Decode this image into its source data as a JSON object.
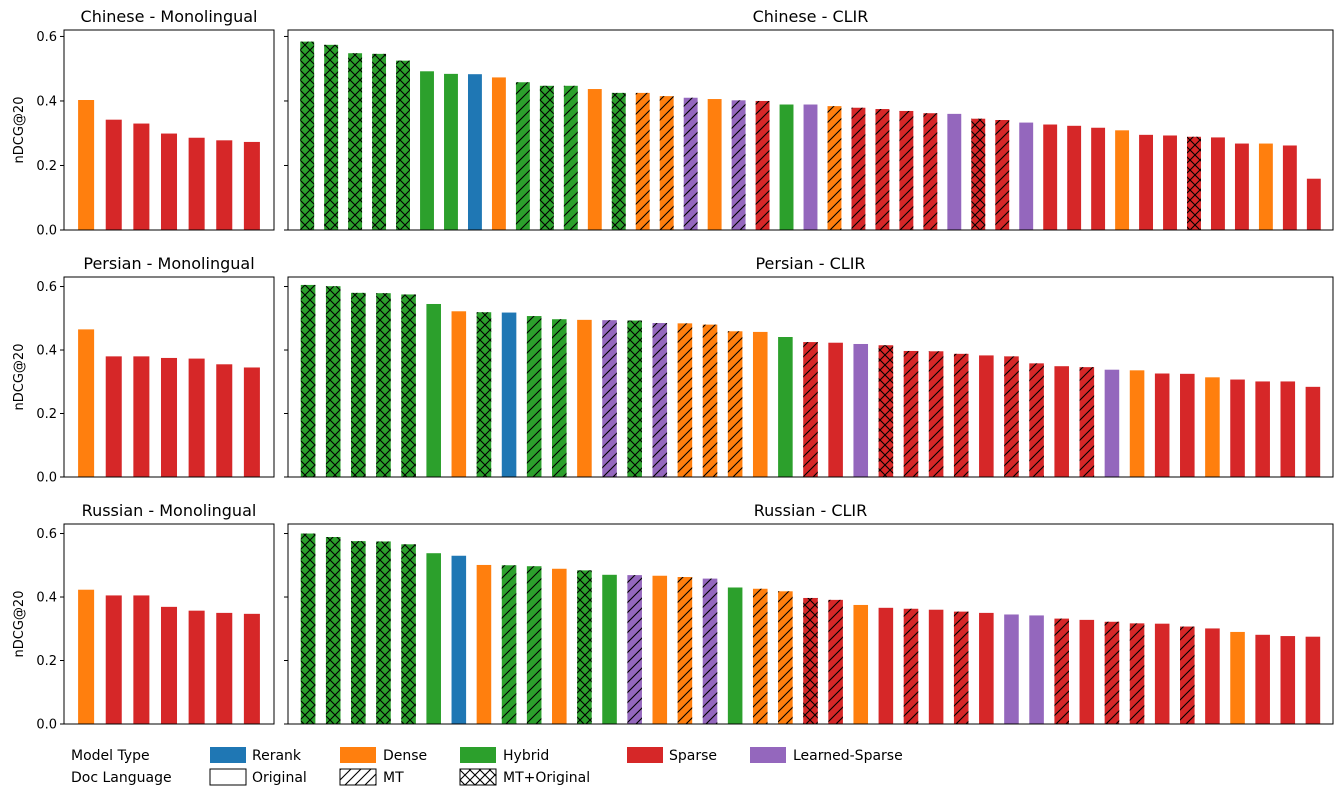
{
  "colors": {
    "Rerank": "#1f77b4",
    "Dense": "#ff7f0e",
    "Hybrid": "#2ca02c",
    "Sparse": "#d62728",
    "Learned-Sparse": "#9467bd"
  },
  "legend": {
    "model_type_label": "Model Type",
    "doc_language_label": "Doc Language",
    "model_types": [
      "Rerank",
      "Dense",
      "Hybrid",
      "Sparse",
      "Learned-Sparse"
    ],
    "doc_languages": [
      {
        "name": "Original",
        "pattern": "none"
      },
      {
        "name": "MT",
        "pattern": "hatch"
      },
      {
        "name": "MT+Original",
        "pattern": "cross"
      }
    ]
  },
  "chart_data": [
    {
      "type": "bar",
      "title": "Chinese - Monolingual",
      "ylabel": "nDCG@20",
      "ylim": [
        0,
        0.62
      ],
      "yticks": [
        "0.0",
        "0.2",
        "0.4",
        "0.6"
      ],
      "bars": [
        {
          "value": 0.403,
          "model": "Dense",
          "doc": "Original"
        },
        {
          "value": 0.342,
          "model": "Sparse",
          "doc": "Original"
        },
        {
          "value": 0.33,
          "model": "Sparse",
          "doc": "Original"
        },
        {
          "value": 0.299,
          "model": "Sparse",
          "doc": "Original"
        },
        {
          "value": 0.286,
          "model": "Sparse",
          "doc": "Original"
        },
        {
          "value": 0.278,
          "model": "Sparse",
          "doc": "Original"
        },
        {
          "value": 0.273,
          "model": "Sparse",
          "doc": "Original"
        }
      ]
    },
    {
      "type": "bar",
      "title": "Chinese - CLIR",
      "ylabel": "",
      "ylim": [
        0,
        0.62
      ],
      "yticks": [],
      "bars": [
        {
          "value": 0.584,
          "model": "Hybrid",
          "doc": "MT+Original"
        },
        {
          "value": 0.574,
          "model": "Hybrid",
          "doc": "MT+Original"
        },
        {
          "value": 0.548,
          "model": "Hybrid",
          "doc": "MT+Original"
        },
        {
          "value": 0.546,
          "model": "Hybrid",
          "doc": "MT+Original"
        },
        {
          "value": 0.525,
          "model": "Hybrid",
          "doc": "MT+Original"
        },
        {
          "value": 0.492,
          "model": "Hybrid",
          "doc": "Original"
        },
        {
          "value": 0.484,
          "model": "Hybrid",
          "doc": "Original"
        },
        {
          "value": 0.483,
          "model": "Rerank",
          "doc": "Original"
        },
        {
          "value": 0.473,
          "model": "Dense",
          "doc": "Original"
        },
        {
          "value": 0.458,
          "model": "Hybrid",
          "doc": "MT"
        },
        {
          "value": 0.447,
          "model": "Hybrid",
          "doc": "MT+Original"
        },
        {
          "value": 0.447,
          "model": "Hybrid",
          "doc": "MT"
        },
        {
          "value": 0.437,
          "model": "Dense",
          "doc": "Original"
        },
        {
          "value": 0.425,
          "model": "Hybrid",
          "doc": "MT+Original"
        },
        {
          "value": 0.425,
          "model": "Dense",
          "doc": "MT"
        },
        {
          "value": 0.415,
          "model": "Dense",
          "doc": "MT"
        },
        {
          "value": 0.41,
          "model": "Learned-Sparse",
          "doc": "MT"
        },
        {
          "value": 0.406,
          "model": "Dense",
          "doc": "Original"
        },
        {
          "value": 0.402,
          "model": "Learned-Sparse",
          "doc": "MT"
        },
        {
          "value": 0.4,
          "model": "Sparse",
          "doc": "MT"
        },
        {
          "value": 0.389,
          "model": "Hybrid",
          "doc": "Original"
        },
        {
          "value": 0.389,
          "model": "Learned-Sparse",
          "doc": "Original"
        },
        {
          "value": 0.384,
          "model": "Dense",
          "doc": "MT"
        },
        {
          "value": 0.379,
          "model": "Sparse",
          "doc": "MT"
        },
        {
          "value": 0.375,
          "model": "Sparse",
          "doc": "MT"
        },
        {
          "value": 0.369,
          "model": "Sparse",
          "doc": "MT"
        },
        {
          "value": 0.362,
          "model": "Sparse",
          "doc": "MT"
        },
        {
          "value": 0.36,
          "model": "Learned-Sparse",
          "doc": "Original"
        },
        {
          "value": 0.345,
          "model": "Sparse",
          "doc": "MT+Original"
        },
        {
          "value": 0.341,
          "model": "Sparse",
          "doc": "MT"
        },
        {
          "value": 0.333,
          "model": "Learned-Sparse",
          "doc": "Original"
        },
        {
          "value": 0.327,
          "model": "Sparse",
          "doc": "Original"
        },
        {
          "value": 0.323,
          "model": "Sparse",
          "doc": "Original"
        },
        {
          "value": 0.317,
          "model": "Sparse",
          "doc": "Original"
        },
        {
          "value": 0.309,
          "model": "Dense",
          "doc": "Original"
        },
        {
          "value": 0.295,
          "model": "Sparse",
          "doc": "Original"
        },
        {
          "value": 0.293,
          "model": "Sparse",
          "doc": "Original"
        },
        {
          "value": 0.289,
          "model": "Sparse",
          "doc": "MT+Original"
        },
        {
          "value": 0.287,
          "model": "Sparse",
          "doc": "Original"
        },
        {
          "value": 0.268,
          "model": "Sparse",
          "doc": "Original"
        },
        {
          "value": 0.268,
          "model": "Dense",
          "doc": "Original"
        },
        {
          "value": 0.262,
          "model": "Sparse",
          "doc": "Original"
        },
        {
          "value": 0.159,
          "model": "Sparse",
          "doc": "Original"
        }
      ]
    },
    {
      "type": "bar",
      "title": "Persian - Monolingual",
      "ylabel": "nDCG@20",
      "ylim": [
        0,
        0.63
      ],
      "yticks": [
        "0.0",
        "0.2",
        "0.4",
        "0.6"
      ],
      "bars": [
        {
          "value": 0.465,
          "model": "Dense",
          "doc": "Original"
        },
        {
          "value": 0.38,
          "model": "Sparse",
          "doc": "Original"
        },
        {
          "value": 0.38,
          "model": "Sparse",
          "doc": "Original"
        },
        {
          "value": 0.375,
          "model": "Sparse",
          "doc": "Original"
        },
        {
          "value": 0.373,
          "model": "Sparse",
          "doc": "Original"
        },
        {
          "value": 0.355,
          "model": "Sparse",
          "doc": "Original"
        },
        {
          "value": 0.345,
          "model": "Sparse",
          "doc": "Original"
        }
      ]
    },
    {
      "type": "bar",
      "title": "Persian - CLIR",
      "ylabel": "",
      "ylim": [
        0,
        0.63
      ],
      "yticks": [],
      "bars": [
        {
          "value": 0.605,
          "model": "Hybrid",
          "doc": "MT+Original"
        },
        {
          "value": 0.601,
          "model": "Hybrid",
          "doc": "MT+Original"
        },
        {
          "value": 0.58,
          "model": "Hybrid",
          "doc": "MT+Original"
        },
        {
          "value": 0.579,
          "model": "Hybrid",
          "doc": "MT+Original"
        },
        {
          "value": 0.575,
          "model": "Hybrid",
          "doc": "MT+Original"
        },
        {
          "value": 0.545,
          "model": "Hybrid",
          "doc": "Original"
        },
        {
          "value": 0.522,
          "model": "Dense",
          "doc": "Original"
        },
        {
          "value": 0.519,
          "model": "Hybrid",
          "doc": "MT+Original"
        },
        {
          "value": 0.518,
          "model": "Rerank",
          "doc": "Original"
        },
        {
          "value": 0.507,
          "model": "Hybrid",
          "doc": "MT"
        },
        {
          "value": 0.497,
          "model": "Hybrid",
          "doc": "MT"
        },
        {
          "value": 0.495,
          "model": "Dense",
          "doc": "Original"
        },
        {
          "value": 0.494,
          "model": "Learned-Sparse",
          "doc": "MT"
        },
        {
          "value": 0.493,
          "model": "Hybrid",
          "doc": "MT+Original"
        },
        {
          "value": 0.485,
          "model": "Learned-Sparse",
          "doc": "MT"
        },
        {
          "value": 0.484,
          "model": "Dense",
          "doc": "MT"
        },
        {
          "value": 0.48,
          "model": "Dense",
          "doc": "MT"
        },
        {
          "value": 0.459,
          "model": "Dense",
          "doc": "MT"
        },
        {
          "value": 0.457,
          "model": "Dense",
          "doc": "Original"
        },
        {
          "value": 0.441,
          "model": "Hybrid",
          "doc": "Original"
        },
        {
          "value": 0.425,
          "model": "Sparse",
          "doc": "MT"
        },
        {
          "value": 0.423,
          "model": "Sparse",
          "doc": "Original"
        },
        {
          "value": 0.419,
          "model": "Learned-Sparse",
          "doc": "Original"
        },
        {
          "value": 0.415,
          "model": "Sparse",
          "doc": "MT+Original"
        },
        {
          "value": 0.397,
          "model": "Sparse",
          "doc": "MT"
        },
        {
          "value": 0.396,
          "model": "Sparse",
          "doc": "MT"
        },
        {
          "value": 0.388,
          "model": "Sparse",
          "doc": "MT"
        },
        {
          "value": 0.383,
          "model": "Sparse",
          "doc": "Original"
        },
        {
          "value": 0.38,
          "model": "Sparse",
          "doc": "MT"
        },
        {
          "value": 0.358,
          "model": "Sparse",
          "doc": "MT"
        },
        {
          "value": 0.349,
          "model": "Sparse",
          "doc": "Original"
        },
        {
          "value": 0.346,
          "model": "Sparse",
          "doc": "MT"
        },
        {
          "value": 0.338,
          "model": "Learned-Sparse",
          "doc": "Original"
        },
        {
          "value": 0.336,
          "model": "Dense",
          "doc": "Original"
        },
        {
          "value": 0.326,
          "model": "Sparse",
          "doc": "Original"
        },
        {
          "value": 0.325,
          "model": "Sparse",
          "doc": "Original"
        },
        {
          "value": 0.314,
          "model": "Dense",
          "doc": "Original"
        },
        {
          "value": 0.307,
          "model": "Sparse",
          "doc": "Original"
        },
        {
          "value": 0.301,
          "model": "Sparse",
          "doc": "Original"
        },
        {
          "value": 0.301,
          "model": "Sparse",
          "doc": "Original"
        },
        {
          "value": 0.284,
          "model": "Sparse",
          "doc": "Original"
        }
      ]
    },
    {
      "type": "bar",
      "title": "Russian - Monolingual",
      "ylabel": "nDCG@20",
      "ylim": [
        0,
        0.63
      ],
      "yticks": [
        "0.0",
        "0.2",
        "0.4",
        "0.6"
      ],
      "bars": [
        {
          "value": 0.423,
          "model": "Dense",
          "doc": "Original"
        },
        {
          "value": 0.405,
          "model": "Sparse",
          "doc": "Original"
        },
        {
          "value": 0.405,
          "model": "Sparse",
          "doc": "Original"
        },
        {
          "value": 0.369,
          "model": "Sparse",
          "doc": "Original"
        },
        {
          "value": 0.357,
          "model": "Sparse",
          "doc": "Original"
        },
        {
          "value": 0.35,
          "model": "Sparse",
          "doc": "Original"
        },
        {
          "value": 0.347,
          "model": "Sparse",
          "doc": "Original"
        }
      ]
    },
    {
      "type": "bar",
      "title": "Russian - CLIR",
      "ylabel": "",
      "ylim": [
        0,
        0.63
      ],
      "yticks": [],
      "bars": [
        {
          "value": 0.6,
          "model": "Hybrid",
          "doc": "MT+Original"
        },
        {
          "value": 0.589,
          "model": "Hybrid",
          "doc": "MT+Original"
        },
        {
          "value": 0.576,
          "model": "Hybrid",
          "doc": "MT+Original"
        },
        {
          "value": 0.575,
          "model": "Hybrid",
          "doc": "MT+Original"
        },
        {
          "value": 0.566,
          "model": "Hybrid",
          "doc": "MT+Original"
        },
        {
          "value": 0.538,
          "model": "Hybrid",
          "doc": "Original"
        },
        {
          "value": 0.53,
          "model": "Rerank",
          "doc": "Original"
        },
        {
          "value": 0.501,
          "model": "Dense",
          "doc": "Original"
        },
        {
          "value": 0.5,
          "model": "Hybrid",
          "doc": "MT"
        },
        {
          "value": 0.497,
          "model": "Hybrid",
          "doc": "MT"
        },
        {
          "value": 0.489,
          "model": "Dense",
          "doc": "Original"
        },
        {
          "value": 0.484,
          "model": "Hybrid",
          "doc": "MT+Original"
        },
        {
          "value": 0.47,
          "model": "Hybrid",
          "doc": "Original"
        },
        {
          "value": 0.469,
          "model": "Learned-Sparse",
          "doc": "MT"
        },
        {
          "value": 0.467,
          "model": "Dense",
          "doc": "Original"
        },
        {
          "value": 0.463,
          "model": "Dense",
          "doc": "MT"
        },
        {
          "value": 0.458,
          "model": "Learned-Sparse",
          "doc": "MT"
        },
        {
          "value": 0.43,
          "model": "Hybrid",
          "doc": "Original"
        },
        {
          "value": 0.426,
          "model": "Dense",
          "doc": "MT"
        },
        {
          "value": 0.418,
          "model": "Dense",
          "doc": "MT"
        },
        {
          "value": 0.397,
          "model": "Sparse",
          "doc": "MT+Original"
        },
        {
          "value": 0.391,
          "model": "Sparse",
          "doc": "MT"
        },
        {
          "value": 0.375,
          "model": "Dense",
          "doc": "Original"
        },
        {
          "value": 0.366,
          "model": "Sparse",
          "doc": "Original"
        },
        {
          "value": 0.363,
          "model": "Sparse",
          "doc": "MT"
        },
        {
          "value": 0.36,
          "model": "Sparse",
          "doc": "Original"
        },
        {
          "value": 0.354,
          "model": "Sparse",
          "doc": "MT"
        },
        {
          "value": 0.35,
          "model": "Sparse",
          "doc": "Original"
        },
        {
          "value": 0.345,
          "model": "Learned-Sparse",
          "doc": "Original"
        },
        {
          "value": 0.342,
          "model": "Learned-Sparse",
          "doc": "Original"
        },
        {
          "value": 0.332,
          "model": "Sparse",
          "doc": "MT"
        },
        {
          "value": 0.328,
          "model": "Sparse",
          "doc": "Original"
        },
        {
          "value": 0.322,
          "model": "Sparse",
          "doc": "MT"
        },
        {
          "value": 0.317,
          "model": "Sparse",
          "doc": "MT"
        },
        {
          "value": 0.316,
          "model": "Sparse",
          "doc": "Original"
        },
        {
          "value": 0.307,
          "model": "Sparse",
          "doc": "MT"
        },
        {
          "value": 0.301,
          "model": "Sparse",
          "doc": "Original"
        },
        {
          "value": 0.29,
          "model": "Dense",
          "doc": "Original"
        },
        {
          "value": 0.281,
          "model": "Sparse",
          "doc": "Original"
        },
        {
          "value": 0.277,
          "model": "Sparse",
          "doc": "Original"
        },
        {
          "value": 0.275,
          "model": "Sparse",
          "doc": "Original"
        }
      ]
    }
  ]
}
